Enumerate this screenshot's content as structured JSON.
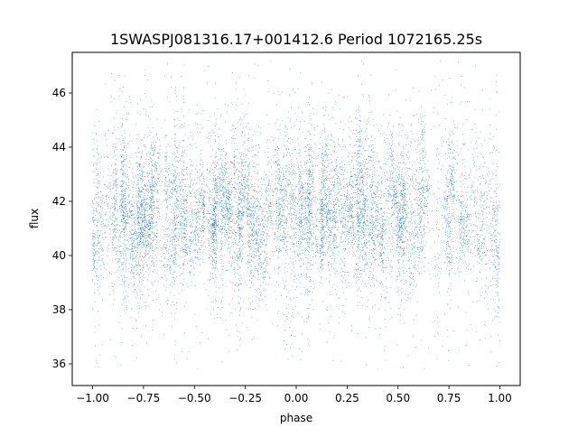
{
  "chart_data": {
    "type": "scatter",
    "title": "1SWASPJ081316.17+001412.6 Period 1072165.25s",
    "xlabel": "phase",
    "ylabel": "flux",
    "xlim": [
      -1.1,
      1.1
    ],
    "ylim": [
      35.2,
      47.5
    ],
    "x_ticks": [
      -1.0,
      -0.75,
      -0.5,
      -0.25,
      0.0,
      0.25,
      0.5,
      0.75,
      1.0
    ],
    "x_tick_labels": [
      "−1.00",
      "−0.75",
      "−0.50",
      "−0.25",
      "0.00",
      "0.25",
      "0.50",
      "0.75",
      "1.00"
    ],
    "y_ticks": [
      36,
      38,
      40,
      42,
      44,
      46
    ],
    "y_tick_labels": [
      "36",
      "38",
      "40",
      "42",
      "44",
      "46"
    ],
    "grid": false,
    "legend": "none",
    "marker_color": "#1f77b4",
    "series_summary": {
      "x_range": [
        -1.0,
        1.0
      ],
      "typical_flux_band": [
        39.5,
        43.5
      ],
      "central_flux": 41.5,
      "min_flux_observed": 35.8,
      "max_flux_observed": 47.2,
      "approx_point_count": 12000
    }
  }
}
